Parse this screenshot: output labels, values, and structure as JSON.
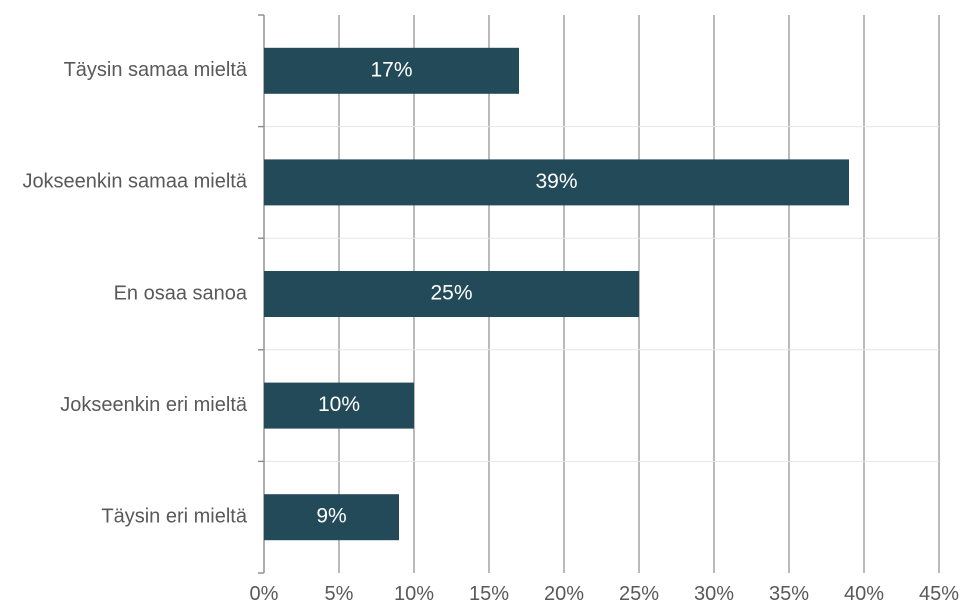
{
  "chart_data": {
    "type": "bar",
    "orientation": "horizontal",
    "categories": [
      "Täysin samaa mieltä",
      "Jokseenkin samaa mieltä",
      "En osaa sanoa",
      "Jokseenkin eri mieltä",
      "Täysin eri mieltä"
    ],
    "values": [
      17,
      39,
      25,
      10,
      9
    ],
    "data_labels": [
      "17%",
      "39%",
      "25%",
      "10%",
      "9%"
    ],
    "xlim": [
      0,
      45
    ],
    "xticks": [
      0,
      5,
      10,
      15,
      20,
      25,
      30,
      35,
      40,
      45
    ],
    "xtick_labels": [
      "0%",
      "5%",
      "10%",
      "15%",
      "20%",
      "25%",
      "30%",
      "35%",
      "40%",
      "45%"
    ],
    "grid": true,
    "legend": "none",
    "bar_color": "#234a59",
    "grid_color": "#8c8c8c",
    "text_color": "#595959"
  }
}
